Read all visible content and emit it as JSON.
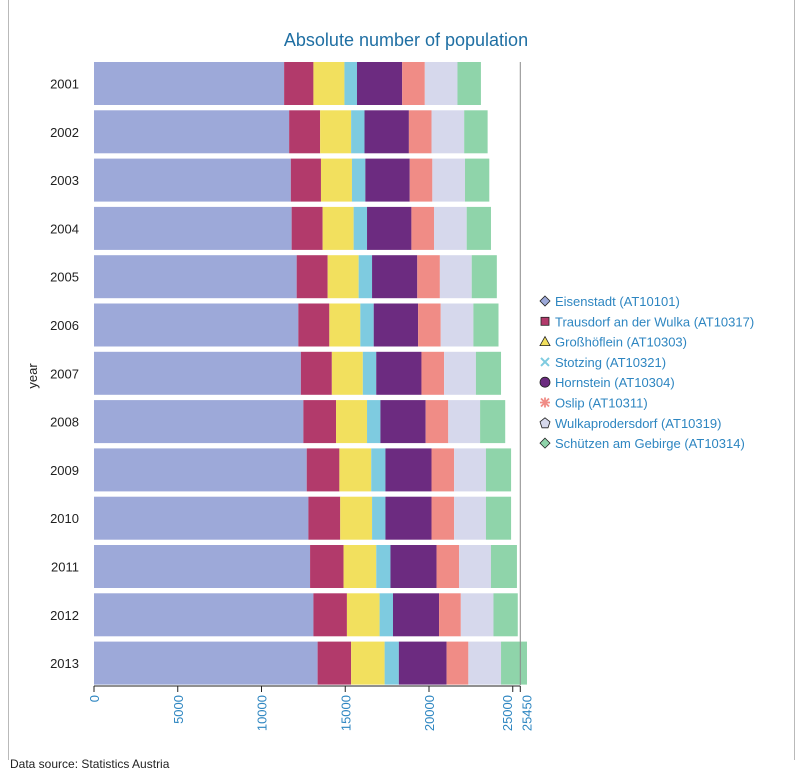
{
  "source_note": "Data source: Statistics Austria",
  "colors": {
    "title": "#1f6fa3",
    "axis_ticks": "#2e86c1",
    "series": [
      "#9da9d9",
      "#b23a6b",
      "#f2e05e",
      "#7ecbe0",
      "#6c2b80",
      "#f08c86",
      "#d6d8ec",
      "#8fd4aa"
    ]
  },
  "chart_data": {
    "type": "bar",
    "orientation": "horizontal",
    "stacked": true,
    "title": "Absolute number of population",
    "ylabel": "year",
    "xlabel": "",
    "xlim": [
      0,
      25450
    ],
    "x_ticks": [
      "0",
      "5000",
      "10000",
      "15000",
      "20000",
      "25000",
      "25450"
    ],
    "reference_line": 25450,
    "legend_position": "right",
    "categories": [
      "2001",
      "2002",
      "2003",
      "2004",
      "2005",
      "2006",
      "2007",
      "2008",
      "2009",
      "2010",
      "2011",
      "2012",
      "2013"
    ],
    "series": [
      {
        "name": "Eisenstadt (AT10101)",
        "marker": "diamond",
        "values": [
          11350,
          11650,
          11750,
          11800,
          12100,
          12200,
          12350,
          12500,
          12700,
          12800,
          12900,
          13100,
          13350
        ]
      },
      {
        "name": "Trausdorf an der Wulka (AT10317)",
        "marker": "square",
        "values": [
          1750,
          1850,
          1800,
          1850,
          1850,
          1850,
          1850,
          1950,
          1950,
          1900,
          2000,
          2000,
          2000
        ]
      },
      {
        "name": "Großhöflein (AT10303)",
        "marker": "triangle",
        "values": [
          1850,
          1850,
          1850,
          1850,
          1850,
          1850,
          1850,
          1850,
          1900,
          1900,
          1950,
          1950,
          2000
        ]
      },
      {
        "name": "Stotzing (AT10321)",
        "marker": "cross",
        "values": [
          750,
          800,
          800,
          800,
          800,
          800,
          800,
          800,
          850,
          800,
          850,
          800,
          850
        ]
      },
      {
        "name": "Hornstein (AT10304)",
        "marker": "circle",
        "values": [
          2700,
          2650,
          2650,
          2650,
          2700,
          2650,
          2700,
          2700,
          2750,
          2750,
          2750,
          2750,
          2850
        ]
      },
      {
        "name": "Oslip (AT10311)",
        "marker": "asterisk",
        "values": [
          1350,
          1350,
          1350,
          1350,
          1350,
          1350,
          1350,
          1350,
          1350,
          1350,
          1350,
          1300,
          1300
        ]
      },
      {
        "name": "Wulkaprodersdorf (AT10319)",
        "marker": "pentagon",
        "values": [
          1950,
          1950,
          1950,
          1950,
          1900,
          1950,
          1900,
          1900,
          1900,
          1900,
          1900,
          1950,
          1950
        ]
      },
      {
        "name": "Schützen am Gebirge (AT10314)",
        "marker": "diamond",
        "values": [
          1400,
          1400,
          1450,
          1450,
          1500,
          1500,
          1500,
          1500,
          1500,
          1500,
          1550,
          1450,
          1550
        ]
      }
    ]
  }
}
